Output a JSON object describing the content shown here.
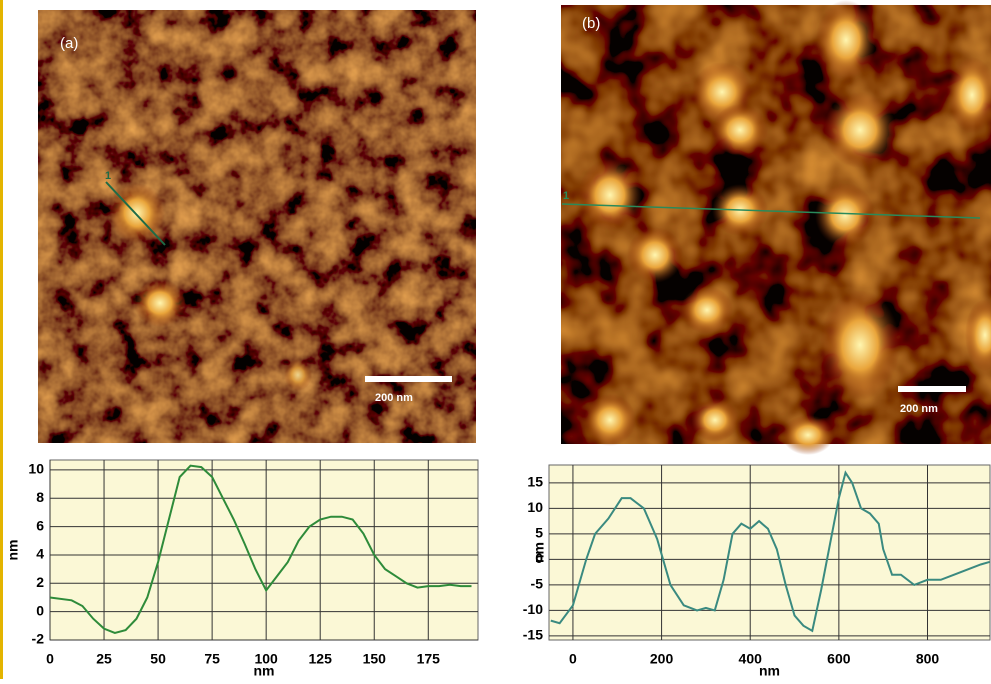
{
  "images": [
    {
      "label": "(a)",
      "scale_bar": "200 nm",
      "line_marker": "1"
    },
    {
      "label": "(b)",
      "scale_bar": "200 nm",
      "line_marker": "1"
    }
  ],
  "chart_data": [
    {
      "type": "line",
      "x_label": "nm",
      "y_label": "nm",
      "grid": true,
      "background": "#fbf8d6",
      "xlim": [
        0,
        198
      ],
      "xticks": [
        0,
        25,
        50,
        75,
        100,
        125,
        150,
        175
      ],
      "ylim": [
        -2,
        10.7
      ],
      "yticks": [
        -2,
        0,
        2,
        4,
        6,
        8,
        10
      ],
      "series": [
        {
          "color": "#2e8b3a",
          "x": [
            0,
            10,
            15,
            20,
            25,
            30,
            35,
            40,
            45,
            50,
            55,
            60,
            65,
            70,
            75,
            80,
            85,
            90,
            95,
            100,
            105,
            110,
            115,
            120,
            125,
            130,
            135,
            140,
            145,
            150,
            155,
            160,
            165,
            170,
            175,
            180,
            185,
            190,
            195
          ],
          "values": [
            1.0,
            0.8,
            0.4,
            -0.5,
            -1.2,
            -1.5,
            -1.3,
            -0.5,
            1.0,
            3.5,
            6.5,
            9.5,
            10.3,
            10.2,
            9.5,
            8.0,
            6.5,
            4.8,
            3.0,
            1.5,
            2.5,
            3.5,
            5.0,
            6.0,
            6.5,
            6.7,
            6.7,
            6.5,
            5.5,
            4.0,
            3.0,
            2.5,
            2.0,
            1.7,
            1.8,
            1.8,
            1.9,
            1.8,
            1.8
          ]
        }
      ]
    },
    {
      "type": "line",
      "x_label": "nm",
      "y_label": "nm",
      "grid": true,
      "background": "#fbf8d6",
      "xlim": [
        -54,
        941
      ],
      "xticks": [
        0,
        200,
        400,
        600,
        800
      ],
      "ylim": [
        -15.8,
        18.5
      ],
      "yticks": [
        -15,
        -10,
        -5,
        0,
        5,
        10,
        15
      ],
      "series": [
        {
          "color": "#3a8a80",
          "x": [
            -50,
            -30,
            0,
            30,
            50,
            80,
            110,
            130,
            160,
            190,
            220,
            250,
            280,
            300,
            320,
            340,
            360,
            380,
            400,
            420,
            440,
            460,
            480,
            500,
            520,
            540,
            560,
            580,
            600,
            615,
            630,
            650,
            670,
            690,
            700,
            720,
            740,
            770,
            800,
            830,
            860,
            890,
            920,
            940
          ],
          "values": [
            -12,
            -12.5,
            -9,
            0,
            5,
            8,
            12,
            12,
            10,
            4,
            -5,
            -9,
            -10,
            -9.5,
            -10,
            -4,
            5,
            7,
            6,
            7.5,
            6,
            2,
            -5,
            -11,
            -13,
            -14,
            -6,
            3,
            12,
            17,
            15,
            10,
            9,
            7,
            2,
            -3,
            -3,
            -5,
            -4,
            -4,
            -3,
            -2,
            -1,
            -0.5
          ]
        }
      ]
    }
  ]
}
